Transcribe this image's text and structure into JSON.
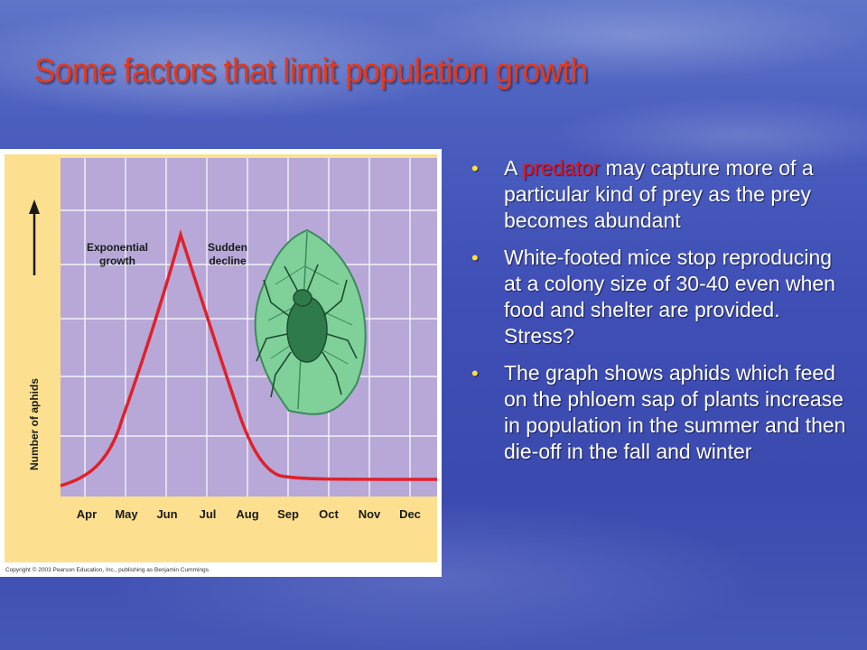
{
  "slide": {
    "title": "Some factors that limit population growth"
  },
  "figure": {
    "y_axis_label": "Number of aphids",
    "annotation_growth_line1": "Exponential",
    "annotation_growth_line2": "growth",
    "annotation_decline_line1": "Sudden",
    "annotation_decline_line2": "decline",
    "months": [
      "Apr",
      "May",
      "Jun",
      "Jul",
      "Aug",
      "Sep",
      "Oct",
      "Nov",
      "Dec"
    ],
    "copyright": "Copyright © 2003 Pearson Education, Inc., publishing as Benjamin Cummings.",
    "colors": {
      "plot_bg": "#b7a8d8",
      "axis_band": "#fce08f",
      "curve": "#e0202a",
      "grid": "#ffffff"
    }
  },
  "bullets": [
    {
      "prefix": "A ",
      "highlight": "predator",
      "rest": " may capture more of a particular kind of prey as the prey becomes abundant"
    },
    {
      "text": "White-footed mice stop reproducing at a colony size of 30-40 even when food and shelter are provided.  Stress?"
    },
    {
      "text": "The graph shows aphids which feed on the phloem sap of plants increase in population in the summer and then die-off in the fall and winter"
    }
  ],
  "bullet_symbol": "•",
  "colors": {
    "title": "#e5391a",
    "bullet_dot": "#ffe13a",
    "highlight": "#e8141b",
    "text": "#ffffff"
  }
}
